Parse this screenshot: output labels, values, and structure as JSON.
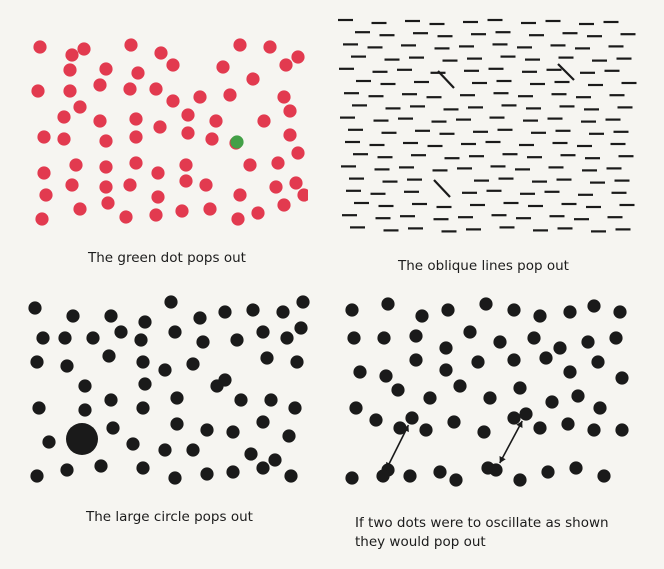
{
  "panels": [
    {
      "id": "green-dot",
      "caption": "The green dot pops out",
      "colors": {
        "dot": "#e23a4f",
        "target": "#43a047"
      },
      "target_count": 1
    },
    {
      "id": "oblique-lines",
      "caption": "The oblique lines pop out",
      "colors": {
        "line": "#1a1a1a"
      },
      "target_count": 3
    },
    {
      "id": "large-circle",
      "caption": "The large circle pops out",
      "colors": {
        "dot": "#1a1a1a"
      },
      "target_count": 1
    },
    {
      "id": "oscillating-dots",
      "caption_line1": "If two dots were to oscillate as shown",
      "caption_line2": "they would pop out",
      "colors": {
        "dot": "#1a1a1a"
      },
      "target_count": 2,
      "arrow_icon": "double-headed-arrow-icon"
    }
  ]
}
